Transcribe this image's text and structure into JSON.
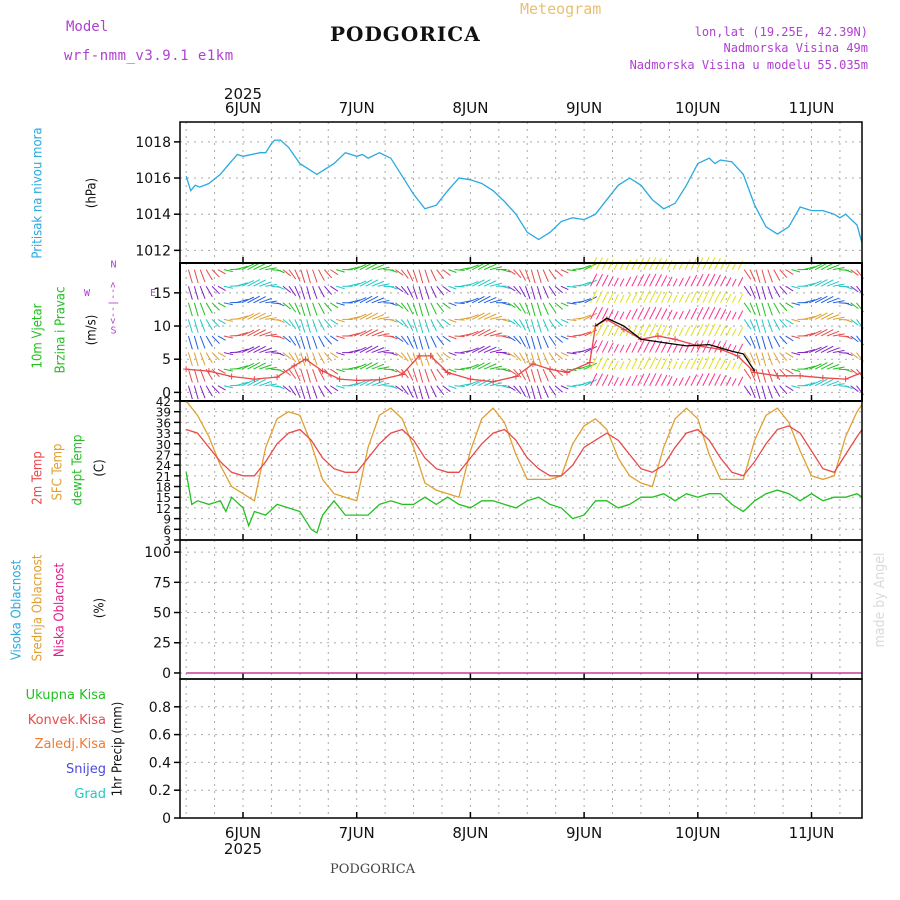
{
  "header": {
    "model_label": "Model",
    "model_name": "wrf-nmm_v3.9.1  e1km",
    "title": "PODGORICA",
    "product": "Meteogram",
    "coords": "lon,lat (19.25E, 42.39N)",
    "elev": "Nadmorska Visina 49m",
    "elev_model": "Nadmorska Visina u modelu 55.035m"
  },
  "footer": {
    "title": "PODGORICA",
    "credit": "made by Angel"
  },
  "colors": {
    "pressure": "#29a9e0",
    "temp2m": "#e84a4a",
    "sfc": "#e0a030",
    "dew": "#22c020",
    "visoka": "#29a9e0",
    "srednja": "#e0a030",
    "niska": "#e0208c",
    "ukupna": "#22c020",
    "konvek": "#e84a4a",
    "zaledj": "#f07a30",
    "snijeg": "#4a4ae0",
    "grad": "#20c8c8"
  },
  "time_axis": {
    "year": "2025",
    "days": [
      "6JUN",
      "7JUN",
      "8JUN",
      "9JUN",
      "10JUN",
      "11JUN"
    ]
  },
  "chart_data": [
    {
      "type": "line",
      "panel": "pressure",
      "labels": [
        "Pritisak na nivou mora",
        "(hPa)"
      ],
      "ylim": [
        1011.3,
        1019.1
      ],
      "yticks": [
        1012,
        1014,
        1016,
        1018
      ],
      "series": [
        {
          "x": [
            -0.5,
            -0.46,
            -0.42,
            -0.38,
            -0.3,
            -0.2,
            -0.12,
            -0.05,
            0,
            0.15,
            0.2,
            0.25,
            0.28,
            0.33,
            0.4,
            0.5,
            0.65,
            0.7,
            0.8,
            0.9,
            1.0,
            1.05,
            1.1,
            1.2,
            1.3,
            1.4,
            1.5,
            1.6,
            1.7,
            1.8,
            1.9,
            2.0,
            2.1,
            2.2,
            2.3,
            2.4,
            2.5,
            2.6,
            2.7,
            2.8,
            2.9,
            3.0,
            3.1,
            3.2,
            3.3,
            3.4,
            3.5,
            3.6,
            3.7,
            3.8,
            3.9,
            4.0,
            4.1,
            4.15,
            4.2,
            4.3,
            4.4,
            4.5,
            4.6,
            4.7,
            4.8,
            4.9,
            5.0,
            5.1,
            5.2,
            5.25,
            5.3,
            5.4,
            5.5
          ],
          "y": [
            1016.1,
            1015.3,
            1015.6,
            1015.5,
            1015.7,
            1016.2,
            1016.8,
            1017.3,
            1017.2,
            1017.4,
            1017.4,
            1017.9,
            1018.1,
            1018.1,
            1017.7,
            1016.8,
            1016.2,
            1016.4,
            1016.8,
            1017.4,
            1017.2,
            1017.3,
            1017.1,
            1017.4,
            1017.1,
            1016.1,
            1015.1,
            1014.3,
            1014.5,
            1015.3,
            1016.0,
            1015.9,
            1015.7,
            1015.3,
            1014.7,
            1014.0,
            1013.0,
            1012.6,
            1013.0,
            1013.6,
            1013.8,
            1013.7,
            1014.0,
            1014.8,
            1015.6,
            1016.0,
            1015.6,
            1014.8,
            1014.3,
            1014.6,
            1015.6,
            1016.8,
            1017.1,
            1016.8,
            1017.0,
            1016.9,
            1016.2,
            1014.5,
            1013.3,
            1012.9,
            1013.3,
            1014.4,
            1014.2,
            1014.2,
            1014.0,
            1013.8,
            1014.0,
            1013.4,
            1012.4
          ],
          "color": "#29a9e0"
        }
      ]
    },
    {
      "type": "line",
      "panel": "wind",
      "labels": [
        "10m Vjetar",
        "Brzina i Pravac",
        "(m/s)"
      ],
      "compass": {
        "n": "N",
        "s": "S",
        "e": "E",
        "w": "W"
      },
      "ylim": [
        -1.3,
        19.5
      ],
      "yticks": [
        0,
        5,
        10,
        15
      ],
      "arrow_levels": [
        1,
        3.5,
        6,
        8.5,
        11,
        13.5,
        16,
        18.5
      ],
      "series": [
        {
          "x": [
            -0.5,
            -0.3,
            -0.1,
            0.1,
            0.3,
            0.45,
            0.55,
            0.7,
            0.85,
            1.0,
            1.2,
            1.4,
            1.55,
            1.65,
            1.8,
            2.0,
            2.2,
            2.4,
            2.55,
            2.7,
            2.85,
            3.05,
            3.1,
            3.2,
            3.35,
            3.5,
            3.65,
            3.8,
            4.0,
            4.2,
            4.35,
            4.5,
            4.7,
            4.9,
            5.1,
            5.3,
            5.5
          ],
          "y": [
            3.5,
            3.2,
            2.4,
            2.0,
            2.3,
            4.0,
            5.0,
            3.2,
            2.0,
            1.8,
            1.9,
            2.7,
            5.5,
            5.5,
            3.0,
            2.0,
            1.6,
            2.4,
            4.3,
            3.5,
            3.0,
            4.5,
            10.0,
            11.0,
            9.5,
            8.0,
            8.5,
            8.0,
            7.0,
            6.5,
            5.5,
            3.0,
            2.5,
            2.5,
            2.2,
            2.0,
            3.0
          ],
          "color": "#e84a4a"
        },
        {
          "x": [
            3.1,
            3.2,
            3.35,
            3.5,
            3.7,
            3.9,
            4.1,
            4.3,
            4.4,
            4.5
          ],
          "y": [
            10.0,
            11.2,
            10.0,
            8.0,
            7.5,
            7.0,
            7.2,
            6.2,
            5.8,
            3.2
          ],
          "color": "#000000"
        }
      ]
    },
    {
      "type": "line",
      "panel": "temperature",
      "labels": [
        "2m Temp",
        "SFC Temp",
        "dewpt Temp",
        "(C)"
      ],
      "ylim": [
        3,
        42
      ],
      "yticks": [
        3,
        6,
        9,
        12,
        15,
        18,
        21,
        24,
        27,
        30,
        33,
        36,
        39,
        42
      ],
      "series": [
        {
          "name": "SFC Temp",
          "x": [
            -0.5,
            -0.4,
            -0.3,
            -0.2,
            -0.1,
            0,
            0.1,
            0.2,
            0.3,
            0.4,
            0.5,
            0.6,
            0.7,
            0.8,
            0.9,
            1.0,
            1.1,
            1.2,
            1.3,
            1.4,
            1.5,
            1.6,
            1.7,
            1.8,
            1.9,
            2.0,
            2.1,
            2.2,
            2.3,
            2.4,
            2.5,
            2.6,
            2.7,
            2.8,
            2.9,
            3.0,
            3.1,
            3.2,
            3.3,
            3.4,
            3.5,
            3.6,
            3.7,
            3.8,
            3.9,
            4.0,
            4.1,
            4.2,
            4.3,
            4.4,
            4.5,
            4.6,
            4.7,
            4.8,
            4.9,
            5.0,
            5.1,
            5.2,
            5.3,
            5.4,
            5.5
          ],
          "y": [
            42,
            38,
            32,
            24,
            18,
            16,
            14,
            29,
            37,
            39,
            38,
            30,
            20,
            16,
            15,
            14,
            29,
            38,
            40,
            37,
            29,
            19,
            17,
            16,
            15,
            28,
            37,
            40,
            36,
            27,
            20,
            20,
            20,
            21,
            30,
            35,
            37,
            34,
            26,
            21,
            19,
            18,
            29,
            37,
            40,
            37,
            27,
            20,
            20,
            20,
            31,
            38,
            40,
            36,
            28,
            21,
            20,
            21,
            32,
            39,
            41
          ],
          "color": "#e0a030"
        },
        {
          "name": "2m Temp",
          "x": [
            -0.5,
            -0.4,
            -0.3,
            -0.2,
            -0.1,
            0,
            0.1,
            0.2,
            0.3,
            0.4,
            0.5,
            0.6,
            0.7,
            0.8,
            0.9,
            1.0,
            1.1,
            1.2,
            1.3,
            1.4,
            1.5,
            1.6,
            1.7,
            1.8,
            1.9,
            2.0,
            2.1,
            2.2,
            2.3,
            2.4,
            2.5,
            2.6,
            2.7,
            2.8,
            2.9,
            3.0,
            3.1,
            3.2,
            3.3,
            3.4,
            3.5,
            3.6,
            3.7,
            3.8,
            3.9,
            4.0,
            4.1,
            4.2,
            4.3,
            4.4,
            4.5,
            4.6,
            4.7,
            4.8,
            4.9,
            5.0,
            5.1,
            5.2,
            5.3,
            5.4,
            5.5
          ],
          "y": [
            34,
            33,
            29,
            25,
            22,
            21,
            21,
            25,
            30,
            33,
            34,
            31,
            26,
            23,
            22,
            22,
            26,
            30,
            33,
            34,
            31,
            26,
            23,
            22,
            22,
            26,
            30,
            33,
            34,
            31,
            26,
            23,
            21,
            21,
            24,
            29,
            31,
            33,
            31,
            27,
            23,
            22,
            24,
            29,
            33,
            34,
            31,
            26,
            22,
            21,
            25,
            30,
            34,
            35,
            33,
            28,
            23,
            22,
            27,
            32,
            34
          ],
          "color": "#e84a4a"
        },
        {
          "name": "dewpt Temp",
          "x": [
            -0.5,
            -0.45,
            -0.4,
            -0.3,
            -0.2,
            -0.15,
            -0.1,
            0,
            0.05,
            0.1,
            0.2,
            0.3,
            0.4,
            0.5,
            0.6,
            0.65,
            0.7,
            0.8,
            0.9,
            1.0,
            1.1,
            1.2,
            1.3,
            1.4,
            1.5,
            1.6,
            1.7,
            1.8,
            1.9,
            2.0,
            2.1,
            2.2,
            2.3,
            2.4,
            2.5,
            2.6,
            2.7,
            2.8,
            2.9,
            3.0,
            3.1,
            3.2,
            3.3,
            3.4,
            3.5,
            3.6,
            3.7,
            3.8,
            3.9,
            4.0,
            4.1,
            4.2,
            4.3,
            4.4,
            4.5,
            4.6,
            4.7,
            4.8,
            4.9,
            5.0,
            5.1,
            5.2,
            5.3,
            5.4,
            5.5
          ],
          "y": [
            22,
            13,
            14,
            13,
            14,
            11,
            15,
            12,
            7,
            11,
            10,
            13,
            12,
            11,
            6,
            5,
            10,
            14,
            10,
            10,
            10,
            13,
            14,
            13,
            13,
            15,
            13,
            15,
            13,
            12,
            14,
            14,
            13,
            12,
            14,
            15,
            13,
            12,
            9,
            10,
            14,
            14,
            12,
            13,
            15,
            15,
            16,
            14,
            16,
            15,
            16,
            16,
            13,
            11,
            14,
            16,
            17,
            16,
            14,
            16,
            14,
            15,
            15,
            16,
            15
          ],
          "color": "#22c020"
        }
      ]
    },
    {
      "type": "line",
      "panel": "clouds",
      "labels": [
        "Visoka Oblacnost",
        "Srednja Oblacnost",
        "Niska Oblacnost",
        "(%)"
      ],
      "ylim": [
        -5,
        110
      ],
      "yticks": [
        0,
        25,
        50,
        75,
        100
      ],
      "series": [
        {
          "name": "Visoka Oblacnost",
          "x": [
            -0.5,
            5.5
          ],
          "y": [
            0,
            0
          ],
          "color": "#29a9e0"
        },
        {
          "name": "Niska Oblacnost",
          "x": [
            -0.5,
            5.5
          ],
          "y": [
            0,
            0
          ],
          "color": "#e0208c"
        }
      ]
    },
    {
      "type": "line",
      "panel": "precip",
      "labels": [
        "1hr Precip (mm)"
      ],
      "legend": [
        "Ukupna Kisa",
        "Konvek.Kisa",
        "Zaledj.Kisa",
        "Snijeg",
        "Grad"
      ],
      "ylim": [
        0,
        1.0
      ],
      "yticks": [
        0,
        0.2,
        0.4,
        0.6,
        0.8
      ],
      "series": []
    }
  ]
}
